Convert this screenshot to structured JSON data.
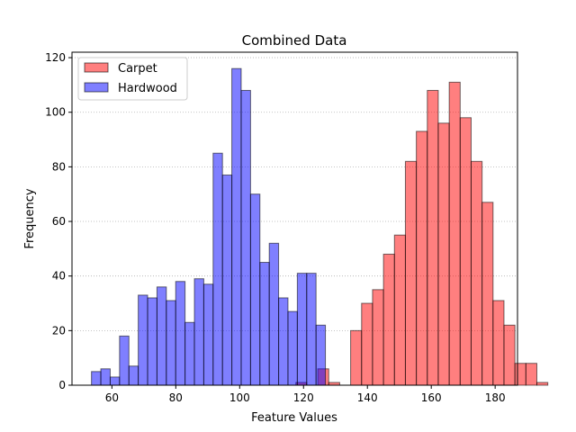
{
  "chart_data": {
    "type": "histogram",
    "title": "Combined Data",
    "xlabel": "Feature Values",
    "ylabel": "Frequency",
    "xlim": [
      47.5,
      187.0
    ],
    "ylim": [
      0,
      122
    ],
    "xticks": [
      60,
      80,
      100,
      120,
      140,
      160,
      180
    ],
    "yticks": [
      0,
      20,
      40,
      60,
      80,
      100,
      120
    ],
    "grid": {
      "axis": "y",
      "style": "dotted"
    },
    "legend_position": "top-left",
    "series": [
      {
        "name": "Carpet",
        "color": "#ff0000",
        "alpha": 0.5,
        "bin_start": 117.6,
        "bin_width": 3.43,
        "values": [
          1,
          0,
          6,
          1,
          0,
          20,
          30,
          35,
          48,
          55,
          82,
          93,
          108,
          96,
          111,
          98,
          82,
          67,
          31,
          22,
          8,
          8,
          1
        ]
      },
      {
        "name": "Hardwood",
        "color": "#0000ff",
        "alpha": 0.5,
        "bin_start": 53.6,
        "bin_width": 2.93,
        "values": [
          5,
          6,
          3,
          18,
          7,
          33,
          32,
          36,
          31,
          38,
          23,
          39,
          37,
          85,
          77,
          116,
          108,
          70,
          45,
          52,
          32,
          27,
          41,
          41,
          22
        ]
      }
    ]
  }
}
